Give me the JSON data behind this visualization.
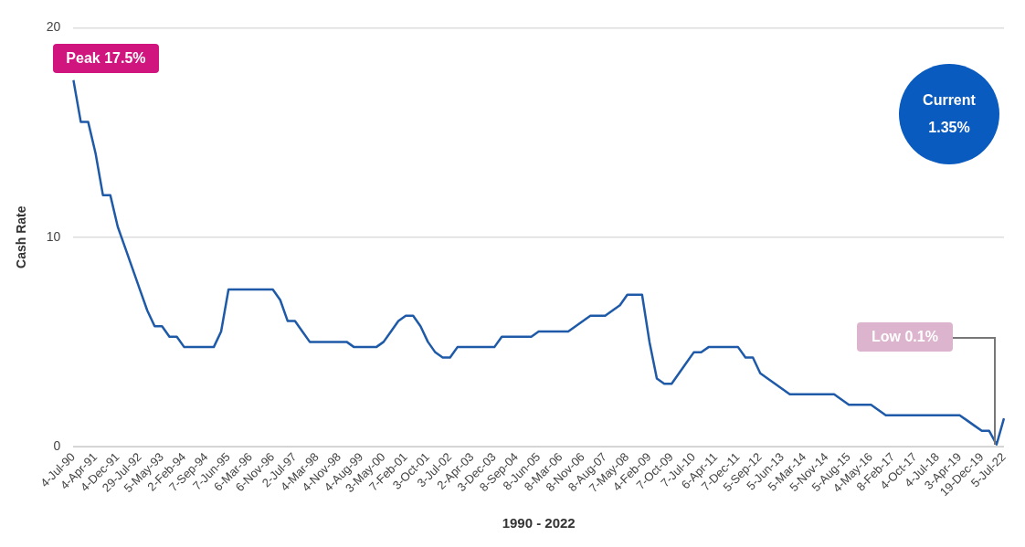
{
  "chart_data": {
    "type": "line",
    "xlabel": "1990 - 2022",
    "ylabel": "Cash Rate",
    "categories": [
      "4-Jul-90",
      null,
      null,
      "4-Apr-91",
      null,
      null,
      "4-Dec-91",
      null,
      null,
      "29-Jul-92",
      null,
      null,
      "5-May-93",
      null,
      null,
      "2-Feb-94",
      null,
      null,
      "7-Sep-94",
      null,
      null,
      "7-Jun-95",
      null,
      null,
      "6-Mar-96",
      null,
      null,
      "6-Nov-96",
      null,
      null,
      "2-Jul-97",
      null,
      null,
      "4-Mar-98",
      null,
      null,
      "4-Nov-98",
      null,
      null,
      "4-Aug-99",
      null,
      null,
      "3-May-00",
      null,
      null,
      "7-Feb-01",
      null,
      null,
      "3-Oct-01",
      null,
      null,
      "3-Jul-02",
      null,
      null,
      "2-Apr-03",
      null,
      null,
      "3-Dec-03",
      null,
      null,
      "8-Sep-04",
      null,
      null,
      "8-Jun-05",
      null,
      null,
      "8-Mar-06",
      null,
      null,
      "8-Nov-06",
      null,
      null,
      "8-Aug-07",
      null,
      null,
      "7-May-08",
      null,
      null,
      "4-Feb-09",
      null,
      null,
      "7-Oct-09",
      null,
      null,
      "7-Jul-10",
      null,
      null,
      "6-Apr-11",
      null,
      null,
      "7-Dec-11",
      null,
      null,
      "5-Sep-12",
      null,
      null,
      "5-Jun-13",
      null,
      null,
      "5-Mar-14",
      null,
      null,
      "5-Nov-14",
      null,
      null,
      "5-Aug-15",
      null,
      null,
      "4-May-16",
      null,
      null,
      "8-Feb-17",
      null,
      null,
      "4-Oct-17",
      null,
      null,
      "4-Jul-18",
      null,
      null,
      "3-Apr-19",
      null,
      null,
      "19-Dec-19",
      null,
      null,
      "5-Jul-22"
    ],
    "series": [
      {
        "color": "#1e5aa8",
        "values": [
          17.5,
          15.5,
          15.5,
          14,
          12,
          12,
          10.5,
          9.5,
          8.5,
          7.5,
          6.5,
          5.75,
          5.75,
          5.25,
          5.25,
          4.75,
          4.75,
          4.75,
          4.75,
          4.75,
          5.5,
          7.5,
          7.5,
          7.5,
          7.5,
          7.5,
          7.5,
          7.5,
          7,
          6,
          6,
          5.5,
          5,
          5,
          5,
          5,
          5,
          5,
          4.75,
          4.75,
          4.75,
          4.75,
          5,
          5.5,
          6,
          6.25,
          6.25,
          5.75,
          5,
          4.5,
          4.25,
          4.25,
          4.75,
          4.75,
          4.75,
          4.75,
          4.75,
          4.75,
          5.25,
          5.25,
          5.25,
          5.25,
          5.25,
          5.5,
          5.5,
          5.5,
          5.5,
          5.5,
          5.75,
          6,
          6.25,
          6.25,
          6.25,
          6.5,
          6.75,
          7.25,
          7.25,
          7.25,
          5,
          3.25,
          3,
          3,
          3.5,
          4,
          4.5,
          4.5,
          4.75,
          4.75,
          4.75,
          4.75,
          4.75,
          4.25,
          4.25,
          3.5,
          3.25,
          3,
          2.75,
          2.5,
          2.5,
          2.5,
          2.5,
          2.5,
          2.5,
          2.5,
          2.25,
          2,
          2,
          2,
          2,
          1.75,
          1.5,
          1.5,
          1.5,
          1.5,
          1.5,
          1.5,
          1.5,
          1.5,
          1.5,
          1.5,
          1.5,
          1.25,
          1,
          0.75,
          0.75,
          0.1,
          1.35
        ]
      }
    ],
    "ylim": [
      0,
      20
    ],
    "yticks": [
      0,
      10,
      20
    ],
    "grid": "y",
    "annotations": [
      {
        "text": "Peak 17.5%",
        "x": "4-Jul-90",
        "y": 17.5
      },
      "Low 0.1%",
      "Current 1.35%"
    ]
  }
}
